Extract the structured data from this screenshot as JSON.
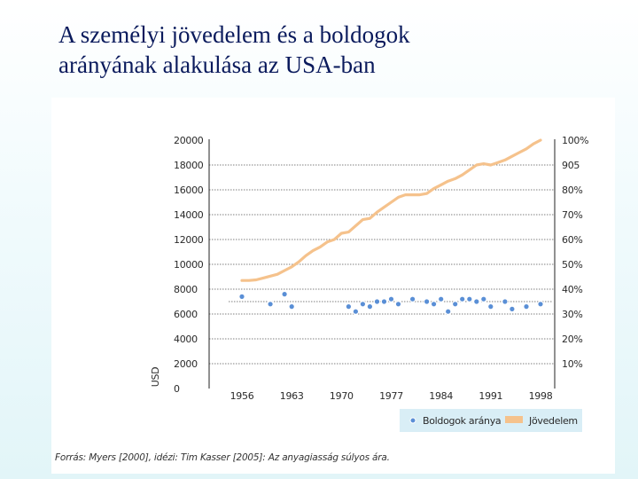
{
  "slide": {
    "title_line1": "A személyi jövedelem és a boldogok",
    "title_line2": "arányának alakulása az USA-ban"
  },
  "chart_data": {
    "type": "line",
    "title": "",
    "xlabel": "",
    "ylabel": "USD",
    "x_ticks": [
      "1956",
      "1963",
      "1970",
      "1977",
      "1984",
      "1991",
      "1998"
    ],
    "left_axis": {
      "label": "USD",
      "range": [
        0,
        20000
      ],
      "ticks": [
        "0",
        "2000",
        "4000",
        "6000",
        "8000",
        "10000",
        "12000",
        "14000",
        "16000",
        "18000",
        "20000"
      ]
    },
    "right_axis": {
      "range_percent": [
        0,
        100
      ],
      "ticks": [
        "10%",
        "20%",
        "30%",
        "40%",
        "50%",
        "60%",
        "70%",
        "80%",
        "905",
        "100%"
      ]
    },
    "series": [
      {
        "name": "Jövedelem",
        "axis": "left",
        "color": "#f5c28c",
        "style": "line",
        "x": [
          1956,
          1957,
          1958,
          1959,
          1960,
          1961,
          1962,
          1963,
          1964,
          1965,
          1966,
          1967,
          1968,
          1969,
          1970,
          1971,
          1972,
          1973,
          1974,
          1975,
          1976,
          1977,
          1978,
          1979,
          1980,
          1981,
          1982,
          1983,
          1984,
          1985,
          1986,
          1987,
          1988,
          1989,
          1990,
          1991,
          1992,
          1993,
          1994,
          1995,
          1996,
          1997,
          1998
        ],
        "values": [
          8700,
          8700,
          8750,
          8900,
          9050,
          9200,
          9500,
          9800,
          10200,
          10700,
          11100,
          11400,
          11800,
          12000,
          12500,
          12600,
          13100,
          13600,
          13700,
          14200,
          14600,
          15000,
          15400,
          15600,
          15600,
          15600,
          15700,
          16100,
          16400,
          16700,
          16900,
          17200,
          17600,
          18000,
          18100,
          18000,
          18200,
          18400,
          18700,
          19000,
          19300,
          19700,
          20000
        ]
      },
      {
        "name": "Boldogok aránya",
        "axis": "right",
        "color": "#5a8fd6",
        "style": "markers",
        "x": [
          1956,
          1960,
          1962,
          1963,
          1971,
          1972,
          1973,
          1974,
          1975,
          1976,
          1977,
          1978,
          1980,
          1982,
          1983,
          1984,
          1985,
          1986,
          1987,
          1988,
          1989,
          1990,
          1991,
          1993,
          1994,
          1996,
          1998
        ],
        "values_percent": [
          37,
          34,
          38,
          33,
          33,
          31,
          34,
          33,
          35,
          35,
          36,
          34,
          36,
          35,
          34,
          36,
          31,
          34,
          36,
          36,
          35,
          36,
          33,
          35,
          32,
          33,
          34
        ]
      }
    ],
    "legend": {
      "placement": "bottom-right",
      "items": [
        "Boldogok aránya",
        "Jövedelem"
      ]
    },
    "grid": "horizontal dotted"
  },
  "source_note": "Forrás: Myers [2000], idézi: Tim Kasser [2005]: Az anyagiasság súlyos ára."
}
